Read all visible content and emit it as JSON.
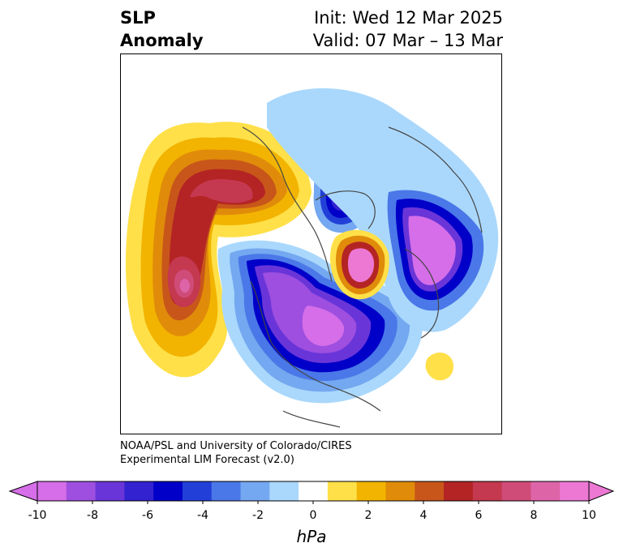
{
  "title": {
    "left_line1": "SLP",
    "left_line2": "Anomaly",
    "right_line1": "Init: Wed 12 Mar 2025",
    "right_line2": "Valid: 07 Mar – 13 Mar"
  },
  "credit": {
    "line1": "NOAA/PSL and University of Colorado/CIRES",
    "line2": "Experimental LIM Forecast (v2.0)"
  },
  "colorbar": {
    "units": "hPa",
    "ticks": [
      "-10",
      "-8",
      "-6",
      "-4",
      "-2",
      "0",
      "2",
      "4",
      "6",
      "8",
      "10"
    ],
    "tick_values": [
      -10,
      -8,
      -6,
      -4,
      -2,
      0,
      2,
      4,
      6,
      8,
      10
    ],
    "levels": [
      -10,
      -9,
      -8,
      -7,
      -6,
      -5,
      -4,
      -3,
      -2,
      -1,
      1,
      2,
      3,
      4,
      5,
      6,
      7,
      8,
      9,
      10
    ],
    "colors": [
      "#d56ee8",
      "#9e4fe0",
      "#6a35d8",
      "#3322d0",
      "#0000c8",
      "#2240d8",
      "#4a78e8",
      "#74a8f0",
      "#aad8fc",
      "#ffffff",
      "#ffe048",
      "#f2b400",
      "#e08c0a",
      "#c8561a",
      "#b42424",
      "#c43850",
      "#d04c78",
      "#de64a8",
      "#ec78d4"
    ],
    "extend_low_color": "#d56ee8",
    "extend_high_color": "#ec78d4"
  }
}
